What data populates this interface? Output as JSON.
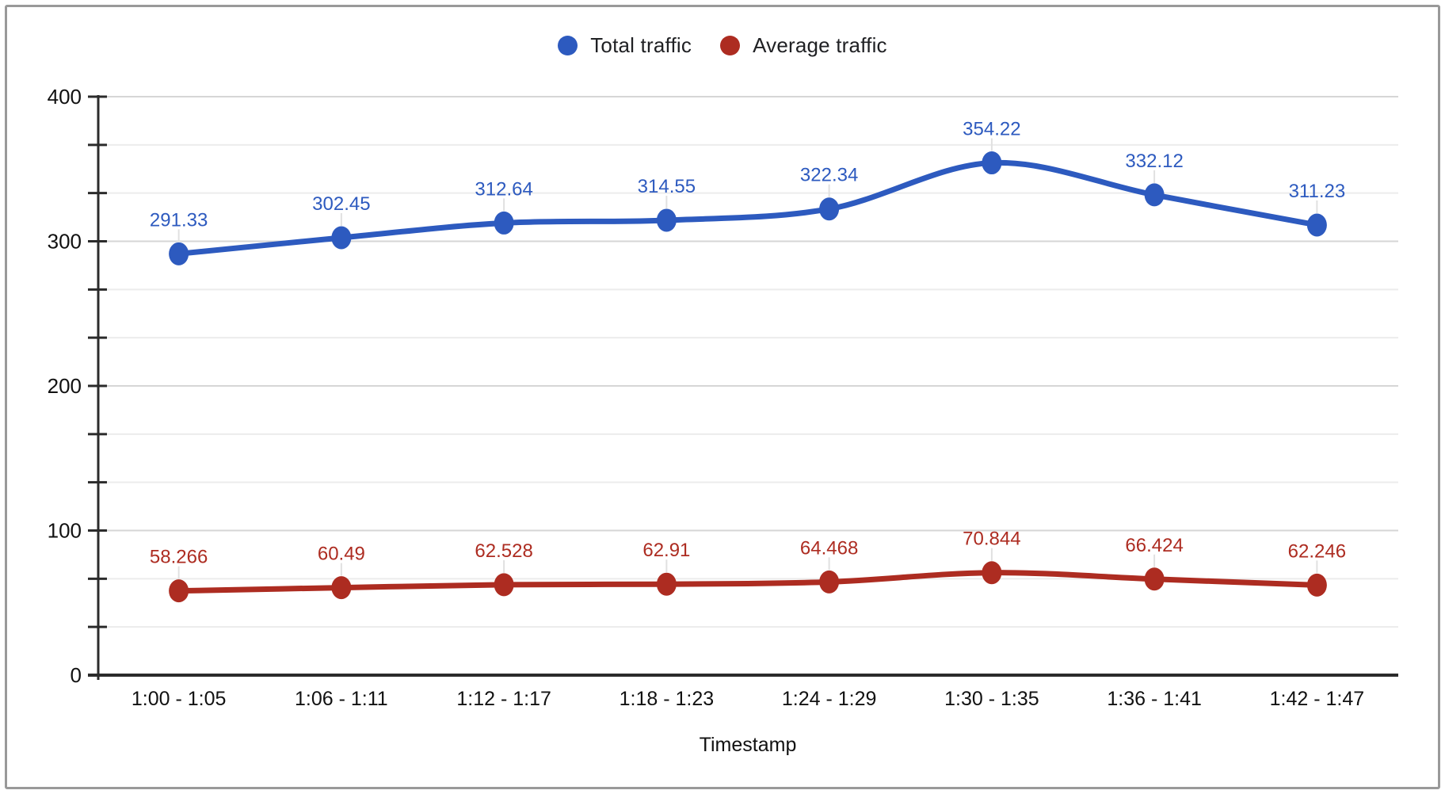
{
  "chart_data": {
    "type": "line",
    "smooth": true,
    "title": "",
    "xlabel": "Timestamp",
    "ylabel": "",
    "categories": [
      "1:00 - 1:05",
      "1:06 - 1:11",
      "1:12 - 1:17",
      "1:18 - 1:23",
      "1:24 - 1:29",
      "1:30 - 1:35",
      "1:36 - 1:41",
      "1:42 - 1:47"
    ],
    "series": [
      {
        "name": "Total traffic",
        "color": "#2d5abf",
        "values": [
          291.33,
          302.45,
          312.64,
          314.55,
          322.34,
          354.22,
          332.12,
          311.23
        ],
        "point_labels": [
          "291.33",
          "302.45",
          "312.64",
          "314.55",
          "322.34",
          "354.22",
          "332.12",
          "311.23"
        ]
      },
      {
        "name": "Average traffic",
        "color": "#ad2c21",
        "values": [
          58.266,
          60.49,
          62.528,
          62.91,
          64.468,
          70.844,
          66.424,
          62.246
        ],
        "point_labels": [
          "58.266",
          "60.49",
          "62.528",
          "62.91",
          "64.468",
          "70.844",
          "66.424",
          "62.246"
        ]
      }
    ],
    "ylim": [
      0,
      400
    ],
    "y_major_ticks": [
      0,
      100,
      200,
      300,
      400
    ],
    "y_minor_divisions_per_major": 3,
    "grid": true,
    "data_labels": true,
    "legend_position": "top"
  },
  "style_colors": {
    "grid_minor": "#ececec",
    "grid_major": "#d6d6d6",
    "axis": "#2b2b2b",
    "tick_text": "#111111",
    "label_connector": "#e0e0e0",
    "frame_border": "#999999"
  }
}
